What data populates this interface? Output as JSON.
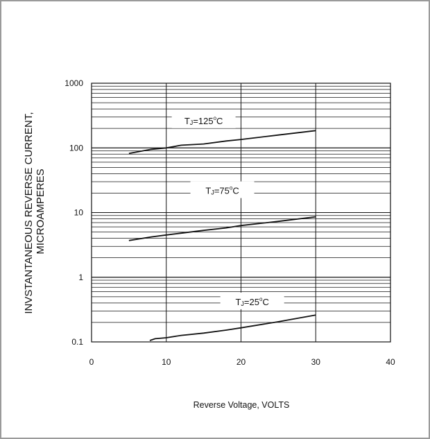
{
  "chart_data": {
    "type": "line",
    "xlabel": "Reverse Voltage, VOLTS",
    "ylabel_lines": [
      "INVSTANTANEOUS REVERSE CURRENT,",
      "MICROAMPERES"
    ],
    "x_ticks": [
      "0",
      "10",
      "20",
      "30",
      "40"
    ],
    "y_ticks": [
      "0.1",
      "1",
      "10",
      "100",
      "1000"
    ],
    "xlim": [
      0,
      40
    ],
    "ylim": [
      0.1,
      1000
    ],
    "y_scale": "log",
    "grid": true,
    "series": [
      {
        "label_main": "T",
        "label_sub": "J",
        "label_rest": "=125",
        "label_sup": "o",
        "label_unit": "C",
        "points": [
          [
            5,
            82
          ],
          [
            8,
            95
          ],
          [
            10,
            100
          ],
          [
            12,
            110
          ],
          [
            15,
            115
          ],
          [
            18,
            128
          ],
          [
            20,
            135
          ],
          [
            25,
            158
          ],
          [
            30,
            185
          ]
        ]
      },
      {
        "label_main": "T",
        "label_sub": "J",
        "label_rest": "=75",
        "label_sup": "o",
        "label_unit": "C",
        "points": [
          [
            5,
            3.7
          ],
          [
            8,
            4.2
          ],
          [
            10,
            4.5
          ],
          [
            12,
            4.8
          ],
          [
            15,
            5.3
          ],
          [
            18,
            5.8
          ],
          [
            20,
            6.3
          ],
          [
            25,
            7.3
          ],
          [
            30,
            8.6
          ]
        ]
      },
      {
        "label_main": "T",
        "label_sub": "J",
        "label_rest": "=25",
        "label_sup": "o",
        "label_unit": "C",
        "points": [
          [
            7.8,
            0.105
          ],
          [
            8.5,
            0.112
          ],
          [
            10,
            0.116
          ],
          [
            12,
            0.126
          ],
          [
            15,
            0.137
          ],
          [
            18,
            0.152
          ],
          [
            20,
            0.165
          ],
          [
            25,
            0.205
          ],
          [
            30,
            0.26
          ]
        ]
      }
    ]
  }
}
